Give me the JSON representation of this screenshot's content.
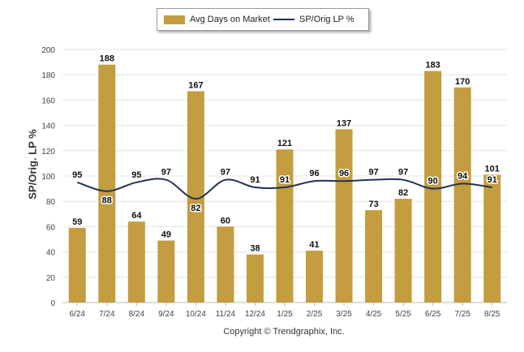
{
  "colors": {
    "bar": "#c39d3f",
    "line": "#1f3353",
    "grid": "#e4e4e4",
    "axis": "#bbbbbb"
  },
  "legend": {
    "bar_label": "Avg Days on Market",
    "line_label": "SP/Orig LP %"
  },
  "footer": {
    "copyright": "Copyright © Trendgraphix, Inc."
  },
  "chart_data": {
    "type": "bar",
    "categories": [
      "6/24",
      "7/24",
      "8/24",
      "9/24",
      "10/24",
      "11/24",
      "12/24",
      "1/25",
      "2/25",
      "3/25",
      "4/25",
      "5/25",
      "6/25",
      "7/25",
      "8/25"
    ],
    "series": [
      {
        "name": "Avg Days on Market",
        "type": "bar",
        "values": [
          59,
          188,
          64,
          49,
          167,
          60,
          38,
          121,
          41,
          137,
          73,
          82,
          183,
          170,
          101
        ]
      },
      {
        "name": "SP/Orig LP %",
        "type": "line",
        "values": [
          95,
          88,
          95,
          97,
          82,
          97,
          91,
          91,
          96,
          96,
          97,
          97,
          90,
          94,
          91
        ]
      }
    ],
    "ylabel": "SP/Orig. LP %",
    "ylim": [
      0,
      200
    ],
    "yticks": [
      0,
      20,
      40,
      60,
      80,
      100,
      120,
      140,
      160,
      180,
      200
    ],
    "grid": true,
    "legend_position": "top"
  }
}
